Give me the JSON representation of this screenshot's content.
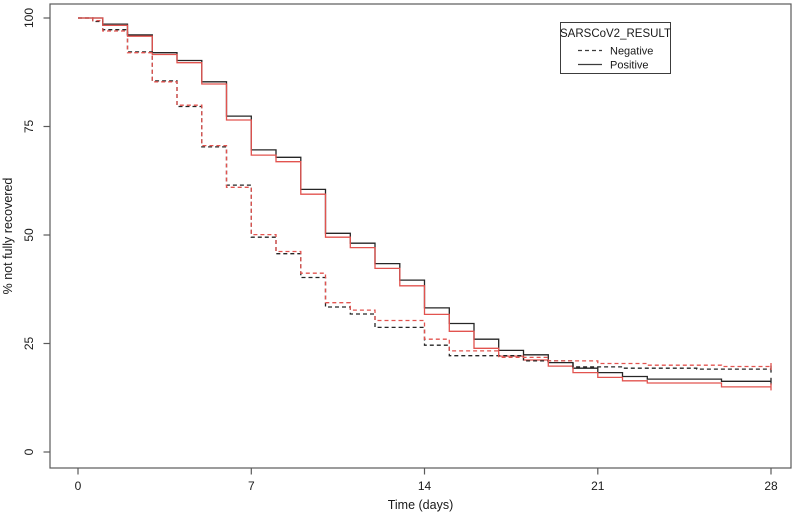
{
  "chart_data": {
    "type": "line",
    "subtype": "kaplan-meier-step",
    "title": "",
    "xlabel": "Time (days)",
    "ylabel": "% not fully recovered",
    "xlim": [
      0,
      28
    ],
    "ylim": [
      0,
      100
    ],
    "x_ticks": [
      0,
      7,
      14,
      21,
      28
    ],
    "y_ticks": [
      0,
      25,
      50,
      75,
      100
    ],
    "grid": false,
    "end_censor_tick": true,
    "legend": {
      "title": "SARSCoV2_RESULT",
      "position": "top-right",
      "items": [
        {
          "label": "Negative",
          "style": "dashed"
        },
        {
          "label": "Positive",
          "style": "solid"
        }
      ]
    },
    "colors": {
      "black": "#262626",
      "red": "#e2534f"
    },
    "series": [
      {
        "id": "positive-black",
        "name": "Positive (black)",
        "group": "Positive",
        "style": "solid",
        "color": "#262626",
        "points": [
          [
            0,
            100
          ],
          [
            1,
            98.6
          ],
          [
            2,
            96.1
          ],
          [
            3,
            92.0
          ],
          [
            4,
            90.2
          ],
          [
            5,
            85.3
          ],
          [
            6,
            77.4
          ],
          [
            7,
            69.6
          ],
          [
            8,
            67.9
          ],
          [
            9,
            60.5
          ],
          [
            10,
            50.4
          ],
          [
            11,
            48.1
          ],
          [
            12,
            43.4
          ],
          [
            13,
            39.6
          ],
          [
            14,
            33.2
          ],
          [
            15,
            29.6
          ],
          [
            16,
            26.0
          ],
          [
            17,
            23.4
          ],
          [
            18,
            22.4
          ],
          [
            19,
            20.6
          ],
          [
            20,
            19.3
          ],
          [
            21,
            18.3
          ],
          [
            22,
            17.4
          ],
          [
            23,
            16.8
          ],
          [
            26,
            16.3
          ],
          [
            28,
            16.3
          ]
        ]
      },
      {
        "id": "positive-red",
        "name": "Positive (red)",
        "group": "Positive",
        "style": "solid",
        "color": "#e2534f",
        "points": [
          [
            0,
            100
          ],
          [
            1,
            98.3
          ],
          [
            2,
            95.8
          ],
          [
            3,
            91.6
          ],
          [
            4,
            89.7
          ],
          [
            5,
            84.8
          ],
          [
            6,
            76.5
          ],
          [
            7,
            68.4
          ],
          [
            8,
            66.9
          ],
          [
            9,
            59.4
          ],
          [
            10,
            49.5
          ],
          [
            11,
            47.1
          ],
          [
            12,
            42.3
          ],
          [
            13,
            38.3
          ],
          [
            14,
            31.7
          ],
          [
            15,
            27.8
          ],
          [
            16,
            23.9
          ],
          [
            17,
            22.1
          ],
          [
            18,
            21.2
          ],
          [
            19,
            19.8
          ],
          [
            20,
            18.3
          ],
          [
            21,
            17.2
          ],
          [
            22,
            16.4
          ],
          [
            23,
            15.9
          ],
          [
            26,
            15.0
          ],
          [
            28,
            15.0
          ]
        ]
      },
      {
        "id": "negative-black",
        "name": "Negative (black)",
        "group": "Negative",
        "style": "dashed",
        "color": "#262626",
        "points": [
          [
            0,
            100
          ],
          [
            0.6,
            99.2
          ],
          [
            1,
            97.3
          ],
          [
            2,
            92.2
          ],
          [
            3,
            85.5
          ],
          [
            4,
            79.6
          ],
          [
            5,
            70.3
          ],
          [
            6,
            61.5
          ],
          [
            7,
            49.5
          ],
          [
            8,
            45.7
          ],
          [
            9,
            40.2
          ],
          [
            10,
            33.4
          ],
          [
            11,
            31.8
          ],
          [
            12,
            28.7
          ],
          [
            14,
            24.6
          ],
          [
            15,
            22.2
          ],
          [
            18,
            21.0
          ],
          [
            20,
            19.6
          ],
          [
            22,
            19.3
          ],
          [
            25,
            19.1
          ],
          [
            28,
            19.1
          ]
        ]
      },
      {
        "id": "negative-red",
        "name": "Negative (red)",
        "group": "Negative",
        "style": "dashed",
        "color": "#e2534f",
        "points": [
          [
            0,
            100
          ],
          [
            0.6,
            99.4
          ],
          [
            1,
            97.0
          ],
          [
            2,
            92.0
          ],
          [
            3,
            85.3
          ],
          [
            4,
            79.9
          ],
          [
            5,
            70.6
          ],
          [
            6,
            61.0
          ],
          [
            7,
            50.1
          ],
          [
            8,
            46.2
          ],
          [
            9,
            41.2
          ],
          [
            10,
            34.4
          ],
          [
            11,
            32.7
          ],
          [
            12,
            30.3
          ],
          [
            14,
            26.0
          ],
          [
            15,
            23.3
          ],
          [
            17,
            21.8
          ],
          [
            19,
            21.0
          ],
          [
            21,
            20.4
          ],
          [
            23,
            20.0
          ],
          [
            26,
            19.7
          ],
          [
            28,
            19.7
          ]
        ]
      }
    ]
  }
}
